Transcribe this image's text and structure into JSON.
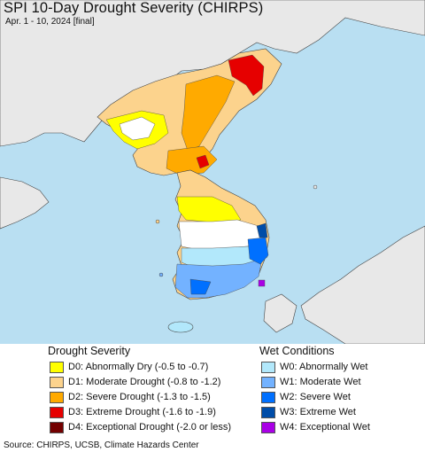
{
  "title": "SPI 10-Day Drought Severity (CHIRPS)",
  "subtitle": "Apr. 1 - 10, 2024 [final]",
  "legend": {
    "drought_heading": "Drought Severity",
    "wet_heading": "Wet Conditions",
    "drought": [
      {
        "label": "D0: Abnormally Dry (-0.5 to -0.7)",
        "color": "#ffff00"
      },
      {
        "label": "D1: Moderate Drought (-0.8 to -1.2)",
        "color": "#fcd38d"
      },
      {
        "label": "D2: Severe Drought (-1.3 to -1.5)",
        "color": "#ffaa00"
      },
      {
        "label": "D3: Extreme Drought (-1.6 to -1.9)",
        "color": "#e60000"
      },
      {
        "label": "D4: Exceptional Drought (-2.0 or less)",
        "color": "#730000"
      }
    ],
    "wet": [
      {
        "label": "W0: Abnormally Wet",
        "color": "#b2e8fb"
      },
      {
        "label": "W1: Moderate Wet",
        "color": "#73b2ff"
      },
      {
        "label": "W2: Severe Wet",
        "color": "#0070ff"
      },
      {
        "label": "W3: Extreme Wet",
        "color": "#004da8"
      },
      {
        "label": "W4: Exceptional Wet",
        "color": "#a900e6"
      }
    ]
  },
  "source": "Source: CHIRPS, UCSB, Climate Hazards Center",
  "colors": {
    "sea": "#b9dff2",
    "land": "#e8e8e8",
    "border": "#444444"
  }
}
